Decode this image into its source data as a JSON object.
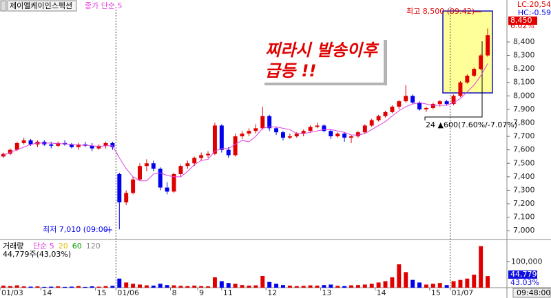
{
  "chart_data": {
    "type": "candlestick",
    "title": "제이엘케이인스펙션",
    "ma_label": "종가 단순 5",
    "up_color": "#e00000",
    "down_color": "#0000ee",
    "ma_color": "#e040e0",
    "ylim": [
      6950,
      8650
    ],
    "yticks": [
      {
        "value": 7000,
        "label": "7,000"
      },
      {
        "value": 7100,
        "label": "7,100"
      },
      {
        "value": 7200,
        "label": "7,200"
      },
      {
        "value": 7300,
        "label": "7,300"
      },
      {
        "value": 7400,
        "label": "7,400"
      },
      {
        "value": 7500,
        "label": "7,500"
      },
      {
        "value": 7600,
        "label": "7,600"
      },
      {
        "value": 7700,
        "label": "7,700"
      },
      {
        "value": 7800,
        "label": "7,800"
      },
      {
        "value": 7900,
        "label": "7,900"
      },
      {
        "value": 8000,
        "label": "8,000"
      },
      {
        "value": 8100,
        "label": "8,100"
      },
      {
        "value": 8200,
        "label": "8,200"
      },
      {
        "value": 8300,
        "label": "8,300"
      },
      {
        "value": 8400,
        "label": "8,400"
      }
    ],
    "xlim": [
      -0.5,
      71.5
    ],
    "xticks": [
      {
        "value": -0.5,
        "label": "01/03"
      },
      {
        "value": 5.5,
        "label": "14"
      },
      {
        "value": 13.5,
        "label": "15"
      },
      {
        "value": 16.5,
        "label": "01/06"
      },
      {
        "value": 24.5,
        "label": "8"
      },
      {
        "value": 28.5,
        "label": "9"
      },
      {
        "value": 32,
        "label": "11"
      },
      {
        "value": 38.5,
        "label": "12"
      },
      {
        "value": 46.5,
        "label": "13"
      },
      {
        "value": 54.5,
        "label": "14"
      },
      {
        "value": 62.5,
        "label": "15"
      },
      {
        "value": 65.5,
        "label": "01/07"
      }
    ],
    "candles": [
      [
        7550,
        7580,
        7540,
        7570
      ],
      [
        7570,
        7610,
        7560,
        7600
      ],
      [
        7600,
        7660,
        7590,
        7650
      ],
      [
        7650,
        7690,
        7640,
        7670
      ],
      [
        7670,
        7680,
        7630,
        7640
      ],
      [
        7640,
        7670,
        7620,
        7660
      ],
      [
        7660,
        7670,
        7630,
        7640
      ],
      [
        7640,
        7660,
        7610,
        7630
      ],
      [
        7630,
        7660,
        7620,
        7650
      ],
      [
        7650,
        7670,
        7630,
        7640
      ],
      [
        7640,
        7650,
        7610,
        7620
      ],
      [
        7620,
        7650,
        7600,
        7640
      ],
      [
        7640,
        7660,
        7620,
        7630
      ],
      [
        7630,
        7650,
        7590,
        7610
      ],
      [
        7610,
        7640,
        7600,
        7630
      ],
      [
        7630,
        7660,
        7610,
        7650
      ],
      [
        7650,
        7660,
        7600,
        7620
      ],
      [
        7420,
        7430,
        7010,
        7210
      ],
      [
        7210,
        7300,
        7190,
        7280
      ],
      [
        7280,
        7400,
        7270,
        7380
      ],
      [
        7380,
        7500,
        7370,
        7480
      ],
      [
        7480,
        7530,
        7440,
        7500
      ],
      [
        7500,
        7520,
        7440,
        7460
      ],
      [
        7460,
        7470,
        7300,
        7320
      ],
      [
        7320,
        7360,
        7270,
        7290
      ],
      [
        7290,
        7430,
        7280,
        7420
      ],
      [
        7420,
        7490,
        7400,
        7480
      ],
      [
        7480,
        7520,
        7460,
        7500
      ],
      [
        7500,
        7550,
        7480,
        7540
      ],
      [
        7540,
        7580,
        7520,
        7560
      ],
      [
        7560,
        7590,
        7540,
        7570
      ],
      [
        7570,
        7800,
        7560,
        7780
      ],
      [
        7780,
        7790,
        7580,
        7600
      ],
      [
        7600,
        7620,
        7540,
        7560
      ],
      [
        7560,
        7720,
        7550,
        7700
      ],
      [
        7700,
        7740,
        7680,
        7720
      ],
      [
        7720,
        7760,
        7700,
        7740
      ],
      [
        7740,
        7790,
        7720,
        7760
      ],
      [
        7760,
        7920,
        7750,
        7850
      ],
      [
        7850,
        7860,
        7740,
        7760
      ],
      [
        7760,
        7770,
        7710,
        7730
      ],
      [
        7730,
        7740,
        7670,
        7690
      ],
      [
        7690,
        7720,
        7680,
        7700
      ],
      [
        7700,
        7730,
        7690,
        7720
      ],
      [
        7720,
        7750,
        7700,
        7740
      ],
      [
        7740,
        7780,
        7730,
        7770
      ],
      [
        7770,
        7800,
        7760,
        7780
      ],
      [
        7780,
        7790,
        7730,
        7740
      ],
      [
        7740,
        7750,
        7680,
        7700
      ],
      [
        7700,
        7730,
        7690,
        7720
      ],
      [
        7720,
        7730,
        7660,
        7690
      ],
      [
        7690,
        7710,
        7650,
        7700
      ],
      [
        7700,
        7740,
        7690,
        7730
      ],
      [
        7730,
        7790,
        7720,
        7780
      ],
      [
        7780,
        7830,
        7770,
        7820
      ],
      [
        7820,
        7860,
        7810,
        7850
      ],
      [
        7850,
        7890,
        7840,
        7880
      ],
      [
        7880,
        7930,
        7870,
        7920
      ],
      [
        7920,
        7970,
        7900,
        7960
      ],
      [
        7960,
        8080,
        7950,
        8000
      ],
      [
        8000,
        8010,
        7940,
        7950
      ],
      [
        7950,
        7960,
        7890,
        7900
      ],
      [
        7900,
        7920,
        7880,
        7910
      ],
      [
        7910,
        7950,
        7900,
        7940
      ],
      [
        7940,
        7970,
        7920,
        7960
      ],
      [
        7960,
        7970,
        7930,
        7940
      ],
      [
        7940,
        8010,
        7930,
        8000
      ],
      [
        8000,
        8110,
        7990,
        8100
      ],
      [
        8100,
        8160,
        8090,
        8150
      ],
      [
        8150,
        8210,
        8140,
        8200
      ],
      [
        8200,
        8310,
        8190,
        8300
      ],
      [
        8300,
        8500,
        8290,
        8450
      ]
    ],
    "ma5": {
      "values": [
        7560,
        7580,
        7600,
        7620,
        7640,
        7650,
        7650,
        7650,
        7645,
        7645,
        7640,
        7635,
        7635,
        7630,
        7625,
        7630,
        7630,
        7540,
        7460,
        7400,
        7370,
        7370,
        7420,
        7430,
        7410,
        7400,
        7400,
        7440,
        7490,
        7520,
        7530,
        7590,
        7610,
        7610,
        7640,
        7670,
        7660,
        7700,
        7760,
        7770,
        7770,
        7760,
        7750,
        7720,
        7720,
        7730,
        7740,
        7750,
        7750,
        7740,
        7730,
        7710,
        7710,
        7720,
        7750,
        7780,
        7810,
        7850,
        7890,
        7920,
        7940,
        7950,
        7940,
        7930,
        7930,
        7930,
        7950,
        7980,
        8030,
        8080,
        8150,
        8240
      ]
    },
    "volume": {
      "label": "거래량",
      "ma_labels": [
        "단순 5",
        "20",
        "60",
        "120"
      ],
      "ma_colors": [
        "#e040e0",
        "#e0c000",
        "#00a000",
        "#888888"
      ],
      "ylim": [
        0,
        175000
      ],
      "yticks": [
        {
          "value": 100000,
          "label": "100,000"
        }
      ],
      "values": [
        8000,
        6000,
        9000,
        5000,
        4000,
        5000,
        3000,
        4000,
        5000,
        3000,
        4000,
        6000,
        3000,
        5000,
        4000,
        6000,
        7000,
        35000,
        20000,
        15000,
        12000,
        9000,
        8000,
        15000,
        10000,
        9000,
        7000,
        6000,
        8000,
        6000,
        5000,
        40000,
        25000,
        18000,
        15000,
        10000,
        8000,
        9000,
        45000,
        22000,
        15000,
        10000,
        8000,
        6000,
        7000,
        9000,
        8000,
        10000,
        12000,
        7000,
        6000,
        9000,
        10000,
        12000,
        15000,
        20000,
        25000,
        40000,
        90000,
        60000,
        30000,
        20000,
        12000,
        15000,
        18000,
        10000,
        25000,
        30000,
        35000,
        50000,
        160000,
        44779
      ],
      "summary": "44,779주(43,03%)",
      "last_box": "44,779",
      "last_pct": "43.03%"
    },
    "info": {
      "lc": "LC:20,54",
      "hc": "HC:-0.59",
      "price_box": "8,450",
      "change_box": "6.02%",
      "time_box": "09:48:00"
    },
    "high_note": "최고 8,500 (09:42)",
    "low_note": "최저 7,010 (09:00)",
    "range_note": "24 ▲600(7.60%/-7.07%)",
    "annotation_lines": [
      "찌라시 발송이후",
      "급등 !!"
    ]
  }
}
